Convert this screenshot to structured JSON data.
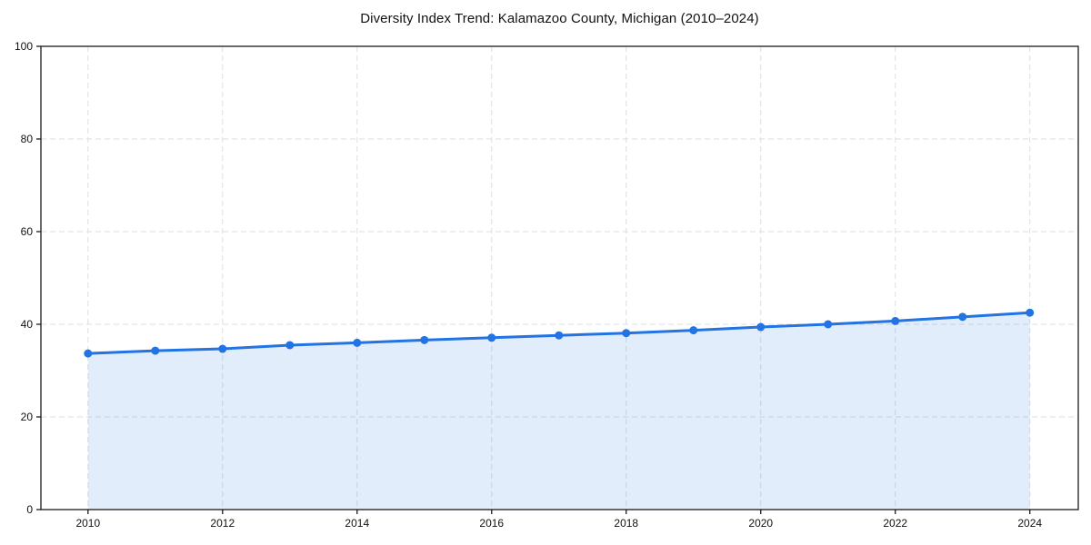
{
  "chart_data": {
    "type": "line",
    "title": "Diversity Index Trend: Kalamazoo County, Michigan (2010–2024)",
    "x": [
      2010,
      2011,
      2012,
      2013,
      2014,
      2015,
      2016,
      2017,
      2018,
      2019,
      2020,
      2021,
      2022,
      2023,
      2024
    ],
    "values": [
      33.7,
      34.3,
      34.7,
      35.5,
      36.0,
      36.6,
      37.1,
      37.6,
      38.1,
      38.7,
      39.4,
      40.0,
      40.7,
      41.6,
      42.5
    ],
    "xlabel": "",
    "ylabel": "",
    "xlim": [
      2009.3,
      2024.72
    ],
    "ylim": [
      0,
      100
    ],
    "xticks": [
      2010,
      2012,
      2014,
      2016,
      2018,
      2020,
      2022,
      2024
    ],
    "yticks": [
      0,
      20,
      40,
      60,
      80,
      100
    ],
    "grid": "dashed",
    "legend": "none",
    "marker": "circle",
    "area_fill": true,
    "colors": {
      "line": "#2273e3",
      "marker": "#2273e3",
      "area": "rgba(34,115,227,0.13)",
      "grid": "#dedede",
      "frame": "#1a1a1a",
      "tick": "#1a1a1a",
      "text": "#111111",
      "background": "#ffffff"
    }
  }
}
